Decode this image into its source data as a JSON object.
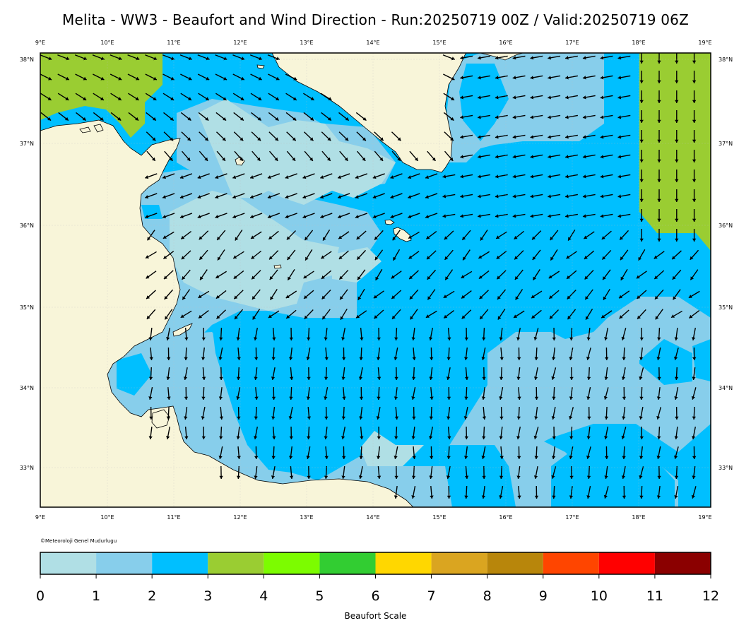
{
  "header": {
    "title": "Melita - WW3 - Beaufort and Wind Direction - Run:20250719 00Z / Valid:20250719 06Z"
  },
  "map": {
    "lon_labels": [
      "9°E",
      "10°E",
      "11°E",
      "12°E",
      "13°E",
      "14°E",
      "15°E",
      "16°E",
      "17°E",
      "18°E",
      "19°E"
    ],
    "lat_labels": [
      "38°N",
      "37°N",
      "36°N",
      "35°N",
      "34°N",
      "33°N"
    ],
    "colors": {
      "land": "#f8f5d9",
      "sea_bf0": "#b0dfe5",
      "sea_bf1": "#87ceeb",
      "sea_bf2": "#00bfff",
      "sea_bf3": "#9acd32"
    }
  },
  "credit": "©Meteoroloji Genel Mudurlugu",
  "colorbar": {
    "title": "Beaufort Scale",
    "tick_labels": [
      "0",
      "1",
      "2",
      "3",
      "4",
      "5",
      "6",
      "7",
      "8",
      "9",
      "10",
      "11",
      "12"
    ],
    "colors": [
      "#b0dfe5",
      "#87ceeb",
      "#00bfff",
      "#9acd32",
      "#7cfc00",
      "#32cd32",
      "#ffd700",
      "#daa520",
      "#b8860b",
      "#ff4500",
      "#ff0000",
      "#8b0000"
    ]
  }
}
